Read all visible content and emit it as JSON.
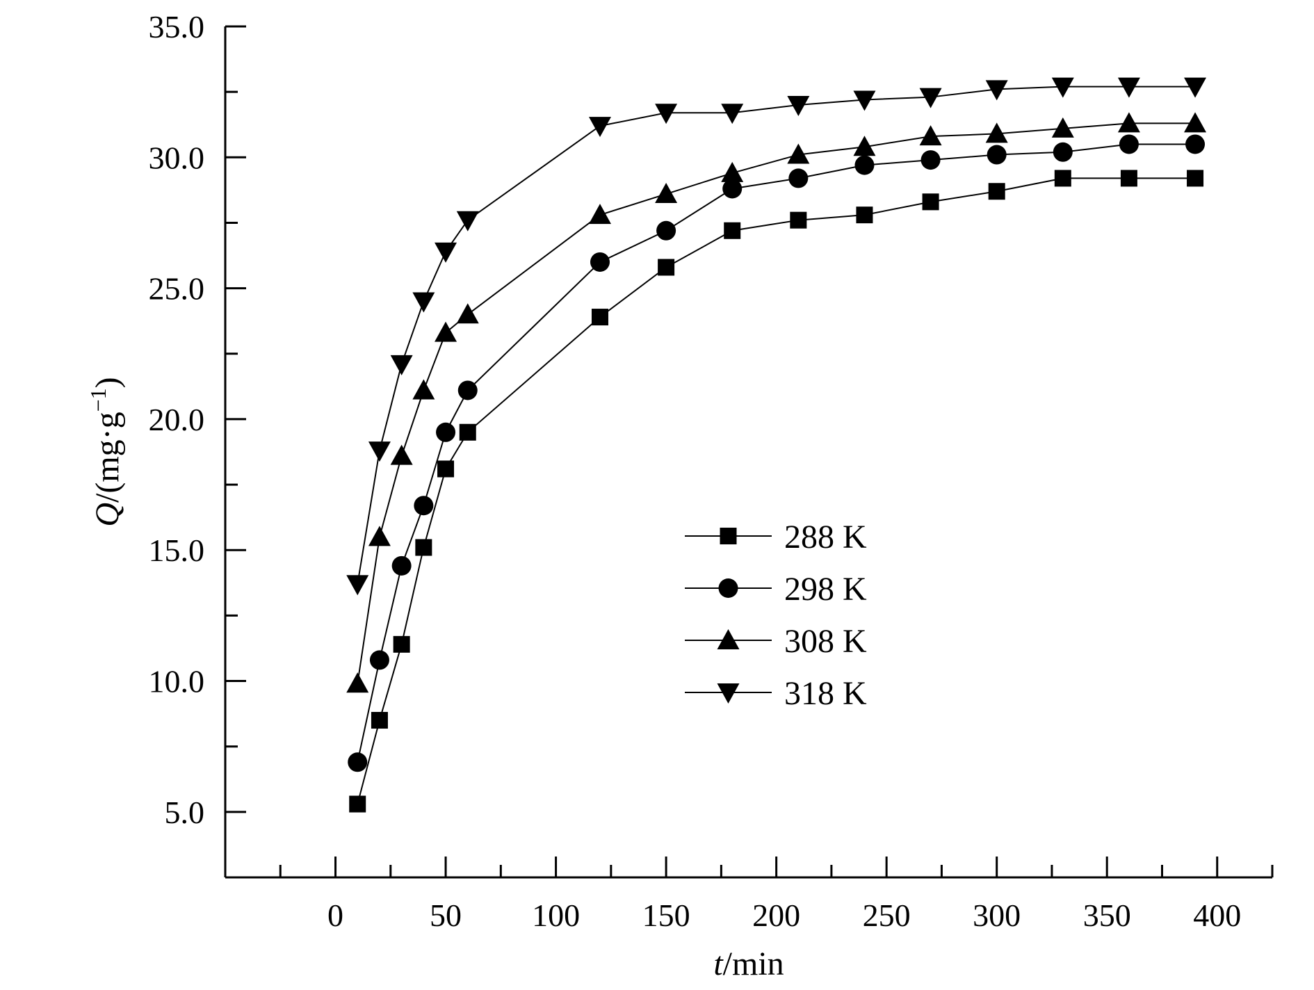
{
  "chart_data": {
    "type": "line",
    "title": "",
    "xlabel_italic": "t",
    "xlabel_rest": "/min",
    "ylabel_italic": "Q",
    "ylabel_rest": "/(mg·g",
    "ylabel_sup": "−1",
    "ylabel_close": ")",
    "xlim": [
      -50,
      425
    ],
    "ylim": [
      2.5,
      35.0
    ],
    "xticks": [
      0,
      50,
      100,
      150,
      200,
      250,
      300,
      350,
      400
    ],
    "xtick_labels": [
      "0",
      "50",
      "100",
      "150",
      "200",
      "250",
      "300",
      "350",
      "400"
    ],
    "yticks": [
      5.0,
      10.0,
      15.0,
      20.0,
      25.0,
      30.0,
      35.0
    ],
    "ytick_labels": [
      "5.0",
      "10.0",
      "15.0",
      "20.0",
      "25.0",
      "30.0",
      "35.0"
    ],
    "legend_position": "center-right",
    "grid": false,
    "x": [
      10,
      20,
      30,
      40,
      50,
      60,
      120,
      150,
      180,
      210,
      240,
      270,
      300,
      330,
      360,
      390
    ],
    "series": [
      {
        "name": "288 K",
        "marker": "square",
        "values": [
          5.3,
          8.5,
          11.4,
          15.1,
          18.1,
          19.5,
          23.9,
          25.8,
          27.2,
          27.6,
          27.8,
          28.3,
          28.7,
          29.2,
          29.2,
          29.2
        ]
      },
      {
        "name": "298 K",
        "marker": "circle",
        "values": [
          6.9,
          10.8,
          14.4,
          16.7,
          19.5,
          21.1,
          26.0,
          27.2,
          28.8,
          29.2,
          29.7,
          29.9,
          30.1,
          30.2,
          30.5,
          30.5
        ]
      },
      {
        "name": "308 K",
        "marker": "triangle-up",
        "values": [
          9.9,
          15.5,
          18.6,
          21.1,
          23.3,
          24.0,
          27.8,
          28.6,
          29.4,
          30.1,
          30.4,
          30.8,
          30.9,
          31.1,
          31.3,
          31.3
        ]
      },
      {
        "name": "318 K",
        "marker": "triangle-down",
        "values": [
          13.7,
          18.8,
          22.1,
          24.5,
          26.4,
          27.6,
          31.2,
          31.7,
          31.7,
          32.0,
          32.2,
          32.3,
          32.6,
          32.7,
          32.7,
          32.7
        ]
      }
    ]
  }
}
